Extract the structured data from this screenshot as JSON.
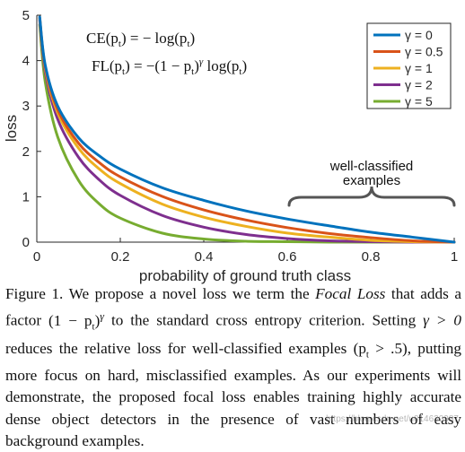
{
  "chart_data": {
    "type": "line",
    "xlabel": "probability of ground truth class",
    "ylabel": "loss",
    "xlim": [
      0,
      1
    ],
    "ylim": [
      0,
      5
    ],
    "xticks": [
      0,
      0.2,
      0.4,
      0.6,
      0.8,
      1
    ],
    "xtick_labels": [
      "0",
      "0.2",
      "0.4",
      "0.6",
      "0.8",
      "1"
    ],
    "yticks": [
      0,
      1,
      2,
      3,
      4,
      5
    ],
    "ytick_labels": [
      "0",
      "1",
      "2",
      "3",
      "4",
      "5"
    ],
    "x": [
      0.007,
      0.02,
      0.05,
      0.1,
      0.15,
      0.2,
      0.3,
      0.4,
      0.5,
      0.6,
      0.7,
      0.8,
      0.9,
      1.0
    ],
    "series": [
      {
        "name": "γ = 0",
        "gamma": 0,
        "color": "#0072bd",
        "values": [
          4.96,
          3.91,
          3.0,
          2.3,
          1.9,
          1.61,
          1.2,
          0.92,
          0.69,
          0.51,
          0.36,
          0.22,
          0.11,
          0.0
        ]
      },
      {
        "name": "γ = 0.5",
        "gamma": 0.5,
        "color": "#d95319",
        "values": [
          4.94,
          3.87,
          2.92,
          2.18,
          1.75,
          1.44,
          1.01,
          0.71,
          0.49,
          0.32,
          0.19,
          0.1,
          0.03,
          0.0
        ]
      },
      {
        "name": "γ = 1",
        "gamma": 1,
        "color": "#edb120",
        "values": [
          4.93,
          3.83,
          2.85,
          2.07,
          1.61,
          1.29,
          0.84,
          0.55,
          0.35,
          0.2,
          0.11,
          0.04,
          0.01,
          0.0
        ]
      },
      {
        "name": "γ = 2",
        "gamma": 2,
        "color": "#7e2f8e",
        "values": [
          4.89,
          3.76,
          2.71,
          1.87,
          1.37,
          1.03,
          0.59,
          0.33,
          0.17,
          0.08,
          0.03,
          0.01,
          0.0,
          0.0
        ]
      },
      {
        "name": "γ = 5",
        "gamma": 5,
        "color": "#77ac30",
        "values": [
          4.79,
          3.54,
          2.32,
          1.36,
          0.84,
          0.53,
          0.2,
          0.07,
          0.02,
          0.01,
          0.0,
          0.0,
          0.0,
          0.0
        ]
      }
    ],
    "legend": {
      "position": "top-right",
      "entries": [
        "γ = 0",
        "γ = 0.5",
        "γ = 1",
        "γ = 2",
        "γ = 5"
      ]
    },
    "annotations": {
      "ce_formula": {
        "lhs": "CE(p",
        "sub": "t",
        "rhs": ") = − log(p",
        "sub2": "t",
        "end": ")"
      },
      "fl_formula": {
        "lhs": "FL(p",
        "sub": "t",
        "mid": ") = −(1 − p",
        "sub2": "t",
        "pow_open": ")",
        "exp": "γ",
        "log": " log(p",
        "sub3": "t",
        "end": ")"
      },
      "region_label_line1": "well-classified",
      "region_label_line2": "examples",
      "region_x_range": [
        0.6,
        1.0
      ]
    },
    "grid": false
  },
  "caption": {
    "prefix": "Figure 1. We propose a novel loss we term the ",
    "term": "Focal Loss",
    "part1": " that adds a factor ",
    "factor": "(1 − p",
    "factor_sub": "t",
    "factor_close": ")",
    "factor_exp": "γ",
    "part2": " to the standard cross entropy criterion. Setting ",
    "gamma_cond": "γ > 0",
    "part3": " reduces the relative loss for well-classified examples ",
    "pt_cond_open": "(p",
    "pt_cond_sub": "t",
    "pt_cond_close": " > .5)",
    "part4": ", putting more focus on hard, misclassified examples. As our experiments will demonstrate, the proposed focal loss enables training highly accurate dense object detectors in the presence of vast numbers of easy background examples."
  },
  "watermark": "https://blog.csdn.net/u014630987"
}
